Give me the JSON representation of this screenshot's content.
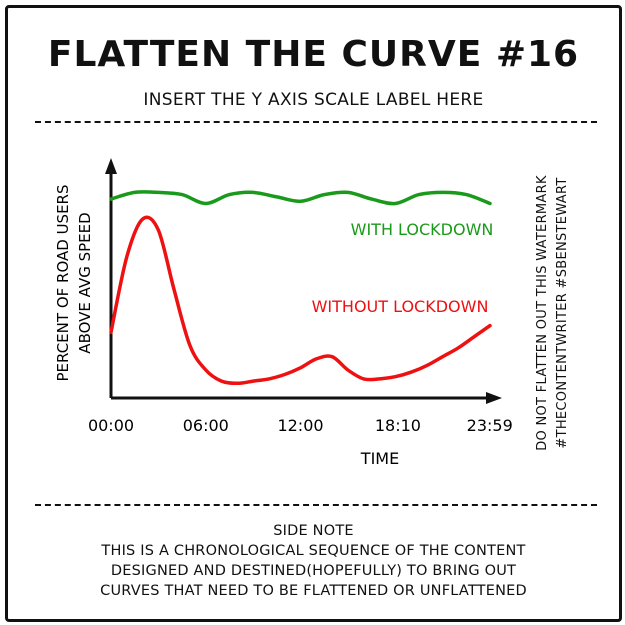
{
  "header": {
    "title": "FLATTEN THE CURVE #16",
    "subtitle": "INSERT THE Y AXIS SCALE LABEL HERE"
  },
  "watermark": {
    "line1": "DO NOT FLATTEN OUT THIS WATERMARK",
    "line2": "#THECONTENTWRITER #SBENSTEWART"
  },
  "side_note": {
    "heading": "SIDE NOTE",
    "lines": [
      "THIS IS A CHRONOLOGICAL SEQUENCE OF THE CONTENT",
      "DESIGNED AND DESTINED(HOPEFULLY) TO BRING OUT",
      "CURVES THAT NEED TO BE FLATTENED OR UNFLATTENED"
    ]
  },
  "colors": {
    "with_lockdown": "#1a9a1a",
    "without_lockdown": "#ee1111",
    "axis": "#111111"
  },
  "chart_data": {
    "type": "line",
    "title": "FLATTEN THE CURVE #16",
    "subtitle": "INSERT THE Y AXIS SCALE LABEL HERE",
    "xlabel": "TIME",
    "ylabel_lines": [
      "PERCENT OF ROAD USERS",
      "ABOVE AVG SPEED"
    ],
    "x_tick_labels": [
      "00:00",
      "06:00",
      "12:00",
      "18:10",
      "23:59"
    ],
    "x_tick_hours": [
      0,
      6,
      12,
      18.17,
      23.98
    ],
    "xlim": [
      0,
      24
    ],
    "ylim": [
      0,
      100
    ],
    "grid": false,
    "series": [
      {
        "name": "WITH LOCKDOWN",
        "color": "#1a9a1a",
        "x": [
          0,
          1.5,
          3,
          4.5,
          6,
          7.5,
          9,
          10.5,
          12,
          13.5,
          15,
          16.5,
          18,
          19.5,
          21,
          22.5,
          24
        ],
        "y": [
          86,
          89,
          89,
          88,
          84,
          88,
          89,
          87,
          85,
          88,
          89,
          86,
          84,
          88,
          89,
          88,
          84
        ]
      },
      {
        "name": "WITHOUT LOCKDOWN",
        "color": "#ee1111",
        "x": [
          0,
          1,
          2,
          3,
          4,
          5,
          6,
          7,
          8,
          9,
          10,
          11,
          12,
          13,
          14,
          15,
          16,
          17,
          18,
          19,
          20,
          21,
          22,
          23,
          24
        ],
        "y": [
          26,
          60,
          77,
          72,
          45,
          20,
          9,
          4,
          3,
          4,
          5,
          7,
          10,
          14,
          15,
          9,
          5,
          5,
          6,
          8,
          11,
          15,
          19,
          24,
          29
        ]
      }
    ]
  }
}
